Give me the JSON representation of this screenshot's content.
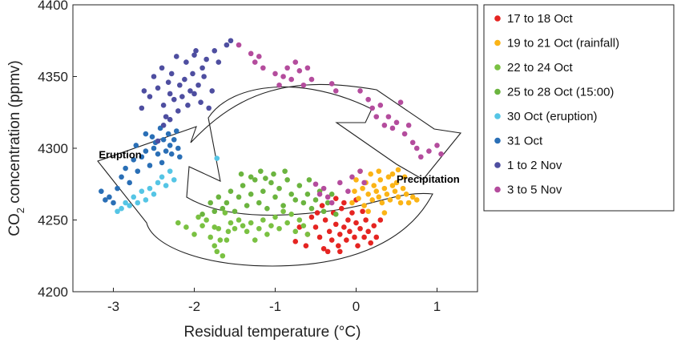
{
  "chart_data": {
    "type": "scatter",
    "xlabel": "Residual temperature (°C)",
    "ylabel_main": "CO",
    "ylabel_sub": "2",
    "ylabel_rest": "  concentration (ppmv)",
    "xlim": [
      -3.5,
      1.5
    ],
    "ylim": [
      4200,
      4400
    ],
    "xticks": [
      -3,
      -2,
      -1,
      0,
      1
    ],
    "yticks": [
      4200,
      4250,
      4300,
      4350,
      4400
    ],
    "legend_position": "right, outside",
    "annotations": [
      {
        "text": "Eruption",
        "x": -3.18,
        "y": 4293
      },
      {
        "text": "Precipitation",
        "x": 0.5,
        "y": 4276
      }
    ],
    "series": [
      {
        "name": "17 to 18 Oct",
        "color": "#e52421",
        "points": [
          [
            -0.75,
            4235
          ],
          [
            -0.6,
            4240
          ],
          [
            -0.55,
            4252
          ],
          [
            -0.5,
            4245
          ],
          [
            -0.45,
            4238
          ],
          [
            -0.4,
            4230
          ],
          [
            -0.38,
            4250
          ],
          [
            -0.33,
            4242
          ],
          [
            -0.3,
            4236
          ],
          [
            -0.28,
            4255
          ],
          [
            -0.25,
            4247
          ],
          [
            -0.22,
            4232
          ],
          [
            -0.2,
            4240
          ],
          [
            -0.18,
            4258
          ],
          [
            -0.15,
            4245
          ],
          [
            -0.12,
            4236
          ],
          [
            -0.1,
            4250
          ],
          [
            -0.08,
            4242
          ],
          [
            -0.05,
            4255
          ],
          [
            -0.02,
            4238
          ],
          [
            0.0,
            4248
          ],
          [
            0.02,
            4232
          ],
          [
            0.05,
            4244
          ],
          [
            0.08,
            4256
          ],
          [
            0.1,
            4238
          ],
          [
            0.12,
            4250
          ],
          [
            0.15,
            4242
          ],
          [
            0.18,
            4234
          ],
          [
            0.22,
            4246
          ],
          [
            0.25,
            4238
          ],
          [
            0.3,
            4250
          ],
          [
            -0.7,
            4245
          ],
          [
            -0.62,
            4232
          ],
          [
            -0.42,
            4260
          ],
          [
            -0.35,
            4228
          ],
          [
            -0.15,
            4262
          ],
          [
            0.0,
            4264
          ],
          [
            -0.25,
            4265
          ],
          [
            -0.48,
            4255
          ],
          [
            -0.2,
            4228
          ]
        ]
      },
      {
        "name": "19 to 21 Oct (rainfall)",
        "color": "#fbb416",
        "points": [
          [
            -0.05,
            4262
          ],
          [
            -0.02,
            4270
          ],
          [
            0.0,
            4278
          ],
          [
            0.03,
            4265
          ],
          [
            0.05,
            4284
          ],
          [
            0.08,
            4272
          ],
          [
            0.1,
            4260
          ],
          [
            0.12,
            4276
          ],
          [
            0.15,
            4268
          ],
          [
            0.18,
            4282
          ],
          [
            0.2,
            4264
          ],
          [
            0.22,
            4274
          ],
          [
            0.25,
            4270
          ],
          [
            0.28,
            4266
          ],
          [
            0.3,
            4278
          ],
          [
            0.32,
            4262
          ],
          [
            0.35,
            4272
          ],
          [
            0.38,
            4268
          ],
          [
            0.4,
            4280
          ],
          [
            0.42,
            4264
          ],
          [
            0.45,
            4274
          ],
          [
            0.48,
            4270
          ],
          [
            0.5,
            4276
          ],
          [
            0.52,
            4266
          ],
          [
            0.55,
            4262
          ],
          [
            0.58,
            4272
          ],
          [
            0.6,
            4280
          ],
          [
            0.62,
            4268
          ],
          [
            0.65,
            4262
          ],
          [
            0.7,
            4266
          ],
          [
            0.75,
            4264
          ],
          [
            0.35,
            4255
          ],
          [
            0.45,
            4282
          ],
          [
            0.52,
            4285
          ],
          [
            0.15,
            4256
          ],
          [
            0.28,
            4284
          ]
        ]
      },
      {
        "name": "22 to 24 Oct",
        "color": "#7ac142",
        "points": [
          [
            -2.2,
            4248
          ],
          [
            -2.1,
            4245
          ],
          [
            -2.0,
            4240
          ],
          [
            -1.95,
            4252
          ],
          [
            -1.9,
            4246
          ],
          [
            -1.8,
            4238
          ],
          [
            -1.75,
            4232
          ],
          [
            -1.72,
            4228
          ],
          [
            -1.7,
            4244
          ],
          [
            -1.65,
            4225
          ],
          [
            -1.6,
            4236
          ],
          [
            -1.55,
            4248
          ],
          [
            -1.5,
            4244
          ],
          [
            -1.45,
            4250
          ],
          [
            -1.4,
            4246
          ],
          [
            -1.35,
            4242
          ],
          [
            -1.3,
            4248
          ],
          [
            -1.25,
            4236
          ],
          [
            -1.2,
            4244
          ],
          [
            -1.15,
            4250
          ],
          [
            -1.1,
            4240
          ],
          [
            -1.05,
            4246
          ],
          [
            -1.0,
            4252
          ],
          [
            -0.95,
            4244
          ],
          [
            -0.9,
            4256
          ],
          [
            -0.85,
            4248
          ],
          [
            -0.8,
            4254
          ],
          [
            -0.75,
            4242
          ],
          [
            -0.7,
            4250
          ],
          [
            -0.65,
            4246
          ],
          [
            -0.6,
            4240
          ],
          [
            -1.85,
            4250
          ],
          [
            -1.75,
            4245
          ],
          [
            -1.68,
            4236
          ],
          [
            -1.62,
            4255
          ],
          [
            -1.58,
            4242
          ]
        ]
      },
      {
        "name": "25  to 28 Oct (15:00)",
        "color": "#6bb43f",
        "points": [
          [
            -1.6,
            4262
          ],
          [
            -1.55,
            4270
          ],
          [
            -1.5,
            4256
          ],
          [
            -1.45,
            4266
          ],
          [
            -1.4,
            4274
          ],
          [
            -1.35,
            4260
          ],
          [
            -1.3,
            4268
          ],
          [
            -1.25,
            4278
          ],
          [
            -1.2,
            4262
          ],
          [
            -1.18,
            4284
          ],
          [
            -1.15,
            4270
          ],
          [
            -1.1,
            4258
          ],
          [
            -1.05,
            4276
          ],
          [
            -1.02,
            4282
          ],
          [
            -1.0,
            4266
          ],
          [
            -0.95,
            4272
          ],
          [
            -0.9,
            4260
          ],
          [
            -0.85,
            4278
          ],
          [
            -0.8,
            4268
          ],
          [
            -0.75,
            4264
          ],
          [
            -0.7,
            4274
          ],
          [
            -0.65,
            4262
          ],
          [
            -0.6,
            4268
          ],
          [
            -0.55,
            4258
          ],
          [
            -0.5,
            4264
          ],
          [
            -0.45,
            4270
          ],
          [
            -0.4,
            4256
          ],
          [
            -0.35,
            4262
          ],
          [
            -0.3,
            4268
          ],
          [
            -0.25,
            4254
          ],
          [
            -1.65,
            4258
          ],
          [
            -1.7,
            4266
          ],
          [
            -1.75,
            4256
          ],
          [
            -1.8,
            4262
          ],
          [
            -1.9,
            4254
          ],
          [
            -1.3,
            4280
          ],
          [
            -1.12,
            4279
          ],
          [
            -0.88,
            4284
          ],
          [
            -1.42,
            4282
          ],
          [
            -0.58,
            4278
          ]
        ]
      },
      {
        "name": "30  Oct (eruption)",
        "color": "#55c5e5",
        "points": [
          [
            -2.95,
            4256
          ],
          [
            -2.9,
            4258
          ],
          [
            -2.85,
            4262
          ],
          [
            -2.8,
            4260
          ],
          [
            -2.75,
            4266
          ],
          [
            -2.7,
            4262
          ],
          [
            -2.65,
            4270
          ],
          [
            -2.6,
            4264
          ],
          [
            -2.55,
            4272
          ],
          [
            -2.5,
            4268
          ],
          [
            -2.45,
            4276
          ],
          [
            -2.4,
            4280
          ],
          [
            -2.35,
            4274
          ],
          [
            -2.3,
            4284
          ],
          [
            -2.25,
            4278
          ],
          [
            -1.72,
            4293
          ]
        ]
      },
      {
        "name": "31 Oct",
        "color": "#2a6fb6",
        "points": [
          [
            -3.15,
            4270
          ],
          [
            -3.1,
            4264
          ],
          [
            -3.05,
            4266
          ],
          [
            -3.0,
            4262
          ],
          [
            -2.95,
            4272
          ],
          [
            -2.9,
            4280
          ],
          [
            -2.85,
            4286
          ],
          [
            -2.8,
            4276
          ],
          [
            -2.75,
            4292
          ],
          [
            -2.7,
            4284
          ],
          [
            -2.65,
            4294
          ],
          [
            -2.6,
            4298
          ],
          [
            -2.55,
            4288
          ],
          [
            -2.5,
            4300
          ],
          [
            -2.48,
            4304
          ],
          [
            -2.45,
            4296
          ],
          [
            -2.4,
            4290
          ],
          [
            -2.38,
            4306
          ],
          [
            -2.35,
            4298
          ],
          [
            -2.32,
            4310
          ],
          [
            -2.3,
            4302
          ],
          [
            -2.28,
            4296
          ],
          [
            -2.25,
            4306
          ],
          [
            -2.22,
            4312
          ],
          [
            -2.2,
            4300
          ],
          [
            -2.18,
            4294
          ],
          [
            -2.42,
            4314
          ],
          [
            -2.52,
            4308
          ],
          [
            -2.6,
            4310
          ],
          [
            -2.72,
            4302
          ]
        ]
      },
      {
        "name": "1 to 2 Nov",
        "color": "#4e4ea0",
        "points": [
          [
            -2.65,
            4328
          ],
          [
            -2.55,
            4336
          ],
          [
            -2.5,
            4350
          ],
          [
            -2.45,
            4342
          ],
          [
            -2.4,
            4356
          ],
          [
            -2.38,
            4330
          ],
          [
            -2.35,
            4322
          ],
          [
            -2.32,
            4346
          ],
          [
            -2.3,
            4338
          ],
          [
            -2.28,
            4352
          ],
          [
            -2.25,
            4334
          ],
          [
            -2.22,
            4364
          ],
          [
            -2.2,
            4326
          ],
          [
            -2.18,
            4344
          ],
          [
            -2.15,
            4336
          ],
          [
            -2.12,
            4348
          ],
          [
            -2.1,
            4360
          ],
          [
            -2.08,
            4330
          ],
          [
            -2.05,
            4340
          ],
          [
            -2.02,
            4352
          ],
          [
            -2.0,
            4338
          ],
          [
            -1.98,
            4368
          ],
          [
            -1.95,
            4344
          ],
          [
            -1.92,
            4332
          ],
          [
            -1.9,
            4356
          ],
          [
            -1.85,
            4362
          ],
          [
            -1.82,
            4328
          ],
          [
            -1.78,
            4340
          ],
          [
            -1.75,
            4368
          ],
          [
            -1.7,
            4360
          ],
          [
            -1.6,
            4372
          ],
          [
            -1.55,
            4375
          ],
          [
            -2.0,
            4365
          ],
          [
            -2.38,
            4316
          ],
          [
            -2.3,
            4320
          ],
          [
            -2.45,
            4305
          ],
          [
            -2.62,
            4340
          ],
          [
            -1.88,
            4350
          ]
        ]
      },
      {
        "name": "3 to 5 Nov",
        "color": "#b44c9d",
        "points": [
          [
            -1.45,
            4372
          ],
          [
            -1.3,
            4366
          ],
          [
            -1.25,
            4360
          ],
          [
            -1.2,
            4364
          ],
          [
            -1.15,
            4356
          ],
          [
            -1.0,
            4352
          ],
          [
            -0.95,
            4344
          ],
          [
            -0.9,
            4350
          ],
          [
            -0.85,
            4356
          ],
          [
            -0.8,
            4348
          ],
          [
            -0.75,
            4360
          ],
          [
            -0.7,
            4354
          ],
          [
            -0.65,
            4344
          ],
          [
            -0.6,
            4356
          ],
          [
            -0.55,
            4348
          ],
          [
            -0.3,
            4345
          ],
          [
            -0.25,
            4340
          ],
          [
            0.05,
            4340
          ],
          [
            0.15,
            4334
          ],
          [
            0.2,
            4328
          ],
          [
            0.25,
            4322
          ],
          [
            0.3,
            4330
          ],
          [
            0.35,
            4316
          ],
          [
            0.4,
            4322
          ],
          [
            0.45,
            4314
          ],
          [
            0.5,
            4318
          ],
          [
            0.55,
            4332
          ],
          [
            0.6,
            4310
          ],
          [
            0.65,
            4316
          ],
          [
            0.7,
            4304
          ],
          [
            0.75,
            4300
          ],
          [
            0.8,
            4294
          ],
          [
            0.9,
            4298
          ],
          [
            1.0,
            4302
          ],
          [
            1.05,
            4296
          ],
          [
            -0.5,
            4275
          ],
          [
            -0.45,
            4268
          ],
          [
            -0.4,
            4272
          ],
          [
            -0.35,
            4266
          ],
          [
            -0.3,
            4262
          ],
          [
            -0.2,
            4276
          ],
          [
            -0.1,
            4270
          ],
          [
            -0.05,
            4280
          ],
          [
            0.05,
            4284
          ],
          [
            0.1,
            4276
          ]
        ]
      }
    ]
  }
}
